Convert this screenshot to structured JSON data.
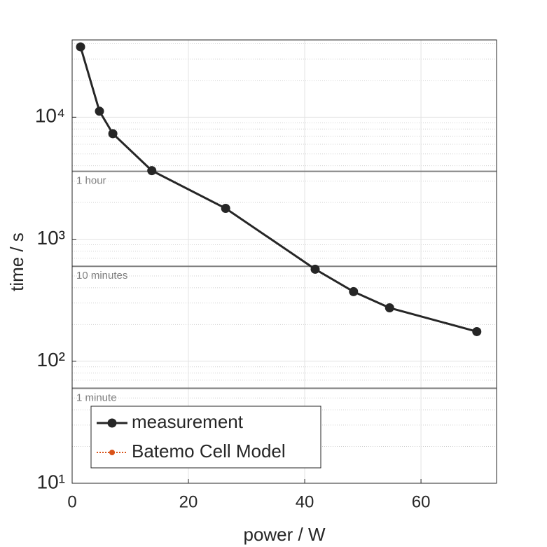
{
  "chart_data": {
    "type": "line",
    "xlabel": "power / W",
    "ylabel": "time / s",
    "x_scale": "linear",
    "y_scale": "log",
    "xlim": [
      0,
      73
    ],
    "ylim": [
      10,
      43000
    ],
    "xticks": [
      0,
      20,
      40,
      60
    ],
    "yticks": [
      {
        "value": 10,
        "label": "10¹"
      },
      {
        "value": 100,
        "label": "10²"
      },
      {
        "value": 1000,
        "label": "10³"
      },
      {
        "value": 10000,
        "label": "10⁴"
      }
    ],
    "grid": true,
    "minor_grid": true,
    "legend_position": "lower left",
    "x": [
      1.45,
      4.7,
      7.0,
      13.7,
      26.4,
      41.8,
      48.4,
      54.6,
      69.6
    ],
    "series": [
      {
        "name": "measurement",
        "color": "#262626",
        "values": [
          37700,
          11200,
          7330,
          3650,
          1790,
          568,
          372,
          274,
          175
        ]
      },
      {
        "name": "Batemo Cell Model",
        "color": "#D95319",
        "values": [
          null,
          null,
          null,
          null,
          null,
          null,
          null,
          null,
          null
        ]
      }
    ],
    "reference_lines": [
      {
        "value": 3600,
        "label": "1 hour",
        "color": "#808080"
      },
      {
        "value": 600,
        "label": "10 minutes",
        "color": "#808080"
      },
      {
        "value": 60,
        "label": "1 minute",
        "color": "#808080"
      }
    ]
  }
}
